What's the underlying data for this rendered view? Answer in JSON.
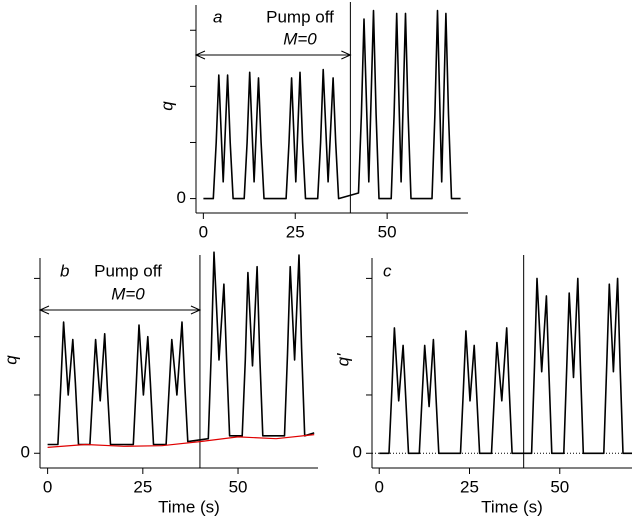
{
  "chart_data": [
    {
      "type": "line",
      "panel_label": "a",
      "ylabel": "q",
      "annotation": "Pump off",
      "annotation_sub": "M=0",
      "annotation_span": [
        0,
        40
      ],
      "vline": 40,
      "xlim": [
        -2,
        72
      ],
      "xticks": [
        0,
        25,
        50
      ],
      "ylim": [
        -0.15,
        3.45
      ],
      "yticks": [
        0
      ],
      "y_minor_ticks": [
        1,
        2,
        3
      ],
      "x": [
        0,
        2.7,
        3.5,
        4.2,
        5.4,
        6.6,
        7.3,
        8.1,
        11.1,
        11.9,
        12.6,
        13.8,
        15,
        15.7,
        16.5,
        22.5,
        23.3,
        24,
        25.15,
        26.3,
        27,
        27.8,
        31.1,
        31.9,
        32.6,
        33.95,
        35.3,
        36,
        36.8,
        42.2,
        43,
        43.7,
        45,
        46.3,
        47,
        47.8,
        51.1,
        51.9,
        52.6,
        53.8,
        55,
        55.7,
        56.5,
        62.2,
        63,
        63.7,
        64.85,
        66,
        66.7,
        67.5,
        70
      ],
      "series": [
        {
          "color": "#000000",
          "values": [
            0,
            0,
            1.0,
            2.2,
            0.3,
            2.2,
            1.0,
            0,
            0,
            1.0,
            2.25,
            0.3,
            2.15,
            1.0,
            0,
            0,
            1.0,
            2.15,
            0.3,
            2.25,
            1.0,
            0,
            0,
            1.0,
            2.3,
            0.3,
            2.15,
            1.0,
            0,
            0.1,
            1.5,
            3.2,
            0.3,
            3.35,
            1.5,
            0,
            0,
            1.5,
            3.3,
            0.3,
            3.3,
            1.5,
            0,
            0,
            1.5,
            3.35,
            0.3,
            3.3,
            1.5,
            0,
            0
          ]
        }
      ]
    },
    {
      "type": "line",
      "panel_label": "b",
      "ylabel": "q",
      "xlabel": "Time (s)",
      "annotation": "Pump off",
      "annotation_sub": "M=0",
      "annotation_span": [
        0,
        40
      ],
      "vline": 40,
      "xlim": [
        -2,
        71
      ],
      "xticks": [
        0,
        25,
        50
      ],
      "ylim": [
        -0.15,
        3.35
      ],
      "yticks": [
        0
      ],
      "y_minor_ticks": [
        1,
        2,
        3
      ],
      "x": [
        0,
        2.7,
        3.5,
        4.2,
        5.4,
        6.6,
        7.3,
        8.1,
        11.1,
        11.9,
        12.6,
        13.8,
        15,
        15.7,
        16.5,
        22.5,
        23.3,
        24,
        25.15,
        26.3,
        27,
        27.8,
        31.1,
        31.9,
        32.6,
        33.95,
        35.3,
        36,
        36.8,
        42.2,
        43,
        43.7,
        45,
        46.3,
        47,
        47.8,
        51.1,
        51.9,
        52.6,
        53.8,
        55,
        55.7,
        56.5,
        62.2,
        63,
        63.7,
        64.85,
        66,
        66.7,
        67.5,
        70
      ],
      "series": [
        {
          "color": "#000000",
          "values": [
            0.15,
            0.15,
            1.2,
            2.25,
            1.0,
            1.95,
            1.2,
            0.15,
            0.15,
            1.1,
            1.95,
            0.9,
            2.05,
            1.1,
            0.15,
            0.15,
            1.2,
            2.2,
            1.0,
            2.0,
            1.2,
            0.15,
            0.15,
            1.1,
            1.95,
            1.0,
            2.25,
            1.2,
            0.2,
            0.25,
            1.8,
            3.45,
            1.6,
            2.9,
            1.6,
            0.3,
            0.3,
            1.6,
            3.1,
            1.5,
            3.2,
            1.7,
            0.3,
            0.3,
            1.7,
            3.2,
            1.6,
            3.4,
            1.8,
            0.3,
            0.35
          ]
        },
        {
          "color": "#e00000",
          "x": [
            0,
            10,
            20,
            30,
            40,
            50,
            60,
            70
          ],
          "values": [
            0.1,
            0.15,
            0.12,
            0.13,
            0.2,
            0.28,
            0.25,
            0.32
          ]
        }
      ]
    },
    {
      "type": "line",
      "panel_label": "c",
      "ylabel": "q'",
      "xlabel": "Time (s)",
      "vline": 40,
      "zero_line": "dotted",
      "xlim": [
        -2,
        70
      ],
      "xticks": [
        0,
        25,
        50
      ],
      "ylim": [
        -0.15,
        3.35
      ],
      "yticks": [
        0
      ],
      "y_minor_ticks": [
        1,
        2,
        3
      ],
      "x": [
        0,
        2.7,
        3.5,
        4.2,
        5.4,
        6.6,
        7.3,
        8.1,
        11.1,
        11.9,
        12.6,
        13.8,
        15,
        15.7,
        16.5,
        22.5,
        23.3,
        24,
        25.15,
        26.3,
        27,
        27.8,
        31.1,
        31.9,
        32.6,
        33.95,
        35.3,
        36,
        36.8,
        42.2,
        43,
        43.7,
        45,
        46.3,
        47,
        47.8,
        51.1,
        51.9,
        52.6,
        53.8,
        55,
        55.7,
        56.5,
        62.2,
        63,
        63.7,
        64.85,
        66,
        66.7,
        67.5,
        70
      ],
      "series": [
        {
          "color": "#000000",
          "values": [
            0,
            0,
            1.1,
            2.15,
            0.9,
            1.85,
            1.0,
            0,
            0,
            1.0,
            1.85,
            0.8,
            1.95,
            1.0,
            0,
            0,
            1.1,
            2.1,
            0.9,
            1.85,
            1.0,
            0,
            0,
            1.0,
            1.9,
            0.9,
            2.15,
            1.1,
            0,
            0,
            1.5,
            3.0,
            1.4,
            2.7,
            1.4,
            0,
            0,
            1.4,
            2.75,
            1.3,
            3.0,
            1.5,
            0,
            0,
            1.5,
            2.9,
            1.4,
            3.0,
            1.5,
            0,
            0
          ]
        }
      ]
    }
  ]
}
